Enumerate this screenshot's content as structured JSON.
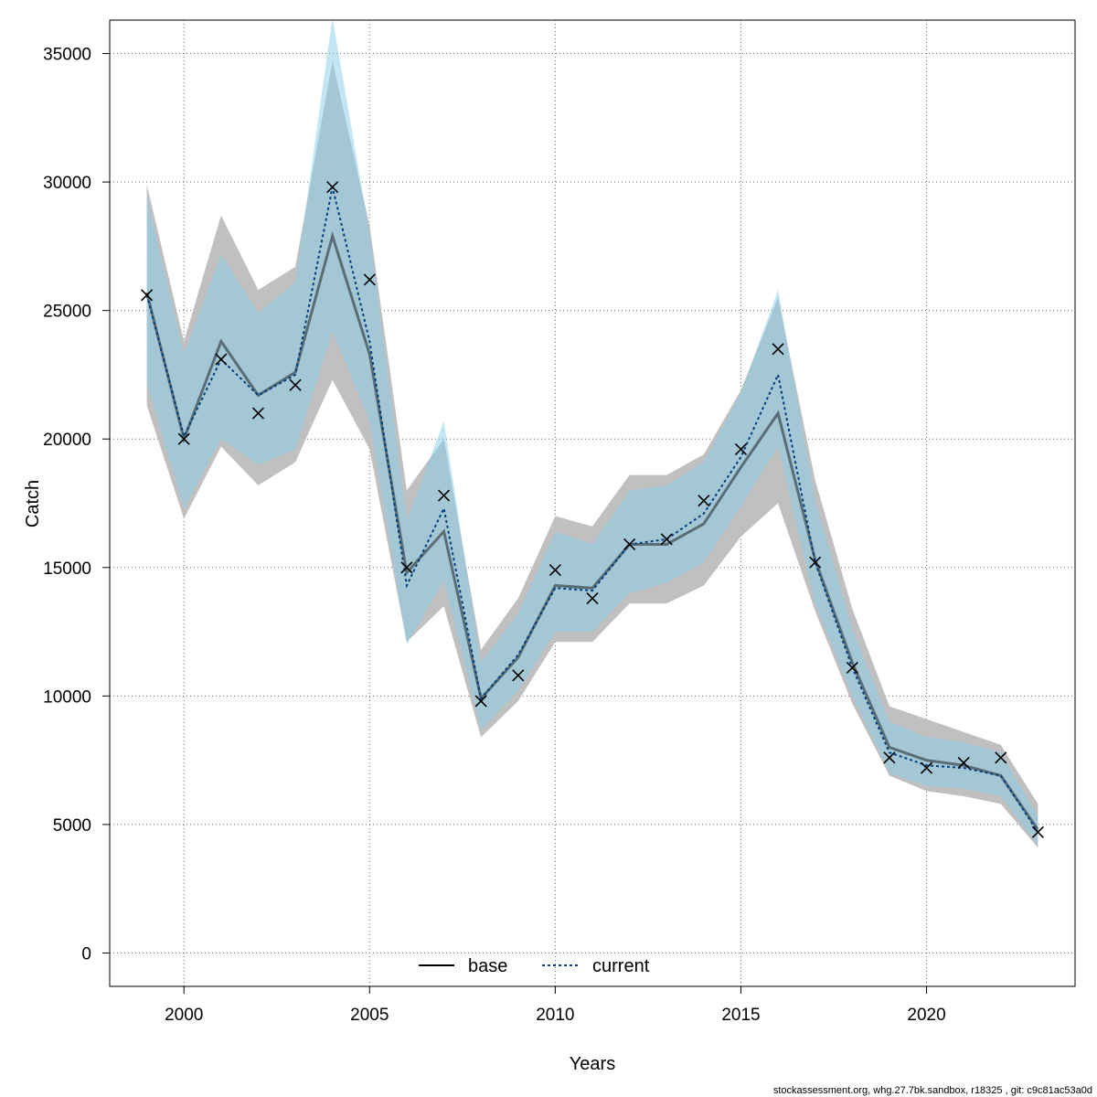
{
  "chart_data": {
    "type": "line",
    "xlabel": "Years",
    "ylabel": "Catch",
    "xlim": [
      1998.0,
      2024.0
    ],
    "ylim": [
      -1300,
      36300
    ],
    "x_ticks": [
      2000,
      2005,
      2010,
      2015,
      2020
    ],
    "y_ticks": [
      0,
      5000,
      10000,
      15000,
      20000,
      25000,
      30000,
      35000
    ],
    "grid": true,
    "legend": {
      "position": "bottom-center",
      "entries": [
        "base",
        "current"
      ]
    },
    "colors": {
      "base_line": "#000000",
      "base_band": "#bdbdbd",
      "current_line": "#003f7f",
      "current_band": "#87ceeb",
      "observed_marker": "#000000"
    },
    "x": [
      1999,
      2000,
      2001,
      2002,
      2003,
      2004,
      2005,
      2006,
      2007,
      2008,
      2009,
      2010,
      2011,
      2012,
      2013,
      2014,
      2015,
      2016,
      2017,
      2018,
      2019,
      2020,
      2021,
      2022,
      2023
    ],
    "series": [
      {
        "name": "base",
        "values": [
          25700,
          20000,
          23800,
          21700,
          22600,
          27900,
          23300,
          14800,
          16400,
          9900,
          11500,
          14300,
          14200,
          15900,
          15900,
          16700,
          18900,
          21000,
          15300,
          11300,
          8000,
          7500,
          7300,
          6900,
          4800
        ],
        "lower": [
          21300,
          16900,
          19700,
          18200,
          19100,
          22300,
          19600,
          12100,
          13500,
          8400,
          9800,
          12100,
          12100,
          13600,
          13600,
          14300,
          16200,
          17500,
          13300,
          9700,
          6900,
          6300,
          6100,
          5800,
          4100
        ],
        "upper": [
          29900,
          23800,
          28700,
          25800,
          26700,
          34700,
          28300,
          18000,
          20000,
          11800,
          13800,
          17000,
          16600,
          18600,
          18600,
          19400,
          21900,
          25500,
          18400,
          13400,
          9600,
          9100,
          8600,
          8100,
          5800
        ]
      },
      {
        "name": "current",
        "values": [
          25600,
          20100,
          23100,
          21700,
          22500,
          29800,
          23800,
          14300,
          17300,
          9900,
          11600,
          14200,
          14100,
          15900,
          16100,
          17100,
          19300,
          22500,
          15200,
          11100,
          7800,
          7300,
          7200,
          6900,
          4700
        ],
        "lower": [
          22200,
          17300,
          20000,
          19000,
          19600,
          24200,
          20700,
          12000,
          14500,
          8700,
          10200,
          12500,
          12500,
          14000,
          14400,
          15200,
          17400,
          19700,
          13600,
          10000,
          7000,
          6500,
          6400,
          6100,
          4200
        ],
        "upper": [
          29400,
          23300,
          27200,
          24900,
          26100,
          36400,
          28000,
          16800,
          20700,
          11300,
          13200,
          16400,
          15900,
          18000,
          18200,
          19100,
          21800,
          25800,
          17600,
          12600,
          9000,
          8400,
          8200,
          7800,
          5300
        ]
      }
    ],
    "observed": {
      "marker": "x",
      "values": [
        25600,
        20000,
        23100,
        21000,
        22100,
        29800,
        26200,
        15000,
        17800,
        9800,
        10800,
        14900,
        13800,
        15900,
        16100,
        17600,
        19600,
        23500,
        15200,
        11100,
        7600,
        7200,
        7400,
        7600,
        4700
      ]
    }
  },
  "footer_text": "stockassessment.org, whg.27.7bk.sandbox, r18325 , git: c9c81ac53a0d"
}
